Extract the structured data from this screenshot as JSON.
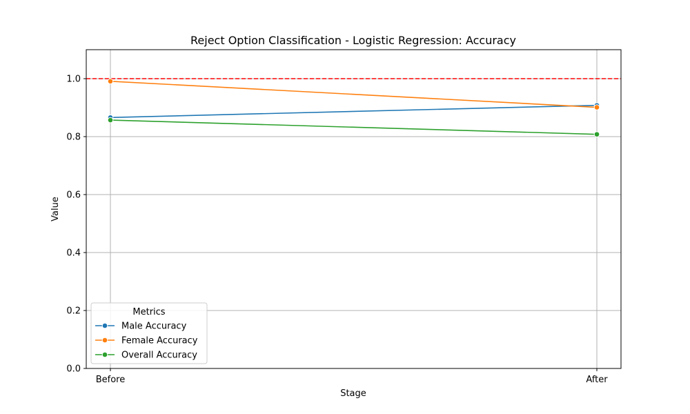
{
  "chart_data": {
    "type": "line",
    "title": "Reject Option Classification - Logistic Regression: Accuracy",
    "xlabel": "Stage",
    "ylabel": "Value",
    "categories": [
      "Before",
      "After"
    ],
    "ylim": [
      0,
      1.1
    ],
    "yticks": [
      "0.0",
      "0.2",
      "0.4",
      "0.6",
      "0.8",
      "1.0"
    ],
    "grid": true,
    "reference_line": {
      "y": 1.0,
      "style": "dashed",
      "color": "#ff0000"
    },
    "legend": {
      "title": "Metrics",
      "placement": "lower-left"
    },
    "series": [
      {
        "name": "Male Accuracy",
        "color": "#1f77b4",
        "values": [
          0.866,
          0.908
        ]
      },
      {
        "name": "Female Accuracy",
        "color": "#ff7f0e",
        "values": [
          0.991,
          0.901
        ]
      },
      {
        "name": "Overall Accuracy",
        "color": "#2ca02c",
        "values": [
          0.857,
          0.808
        ]
      }
    ]
  }
}
